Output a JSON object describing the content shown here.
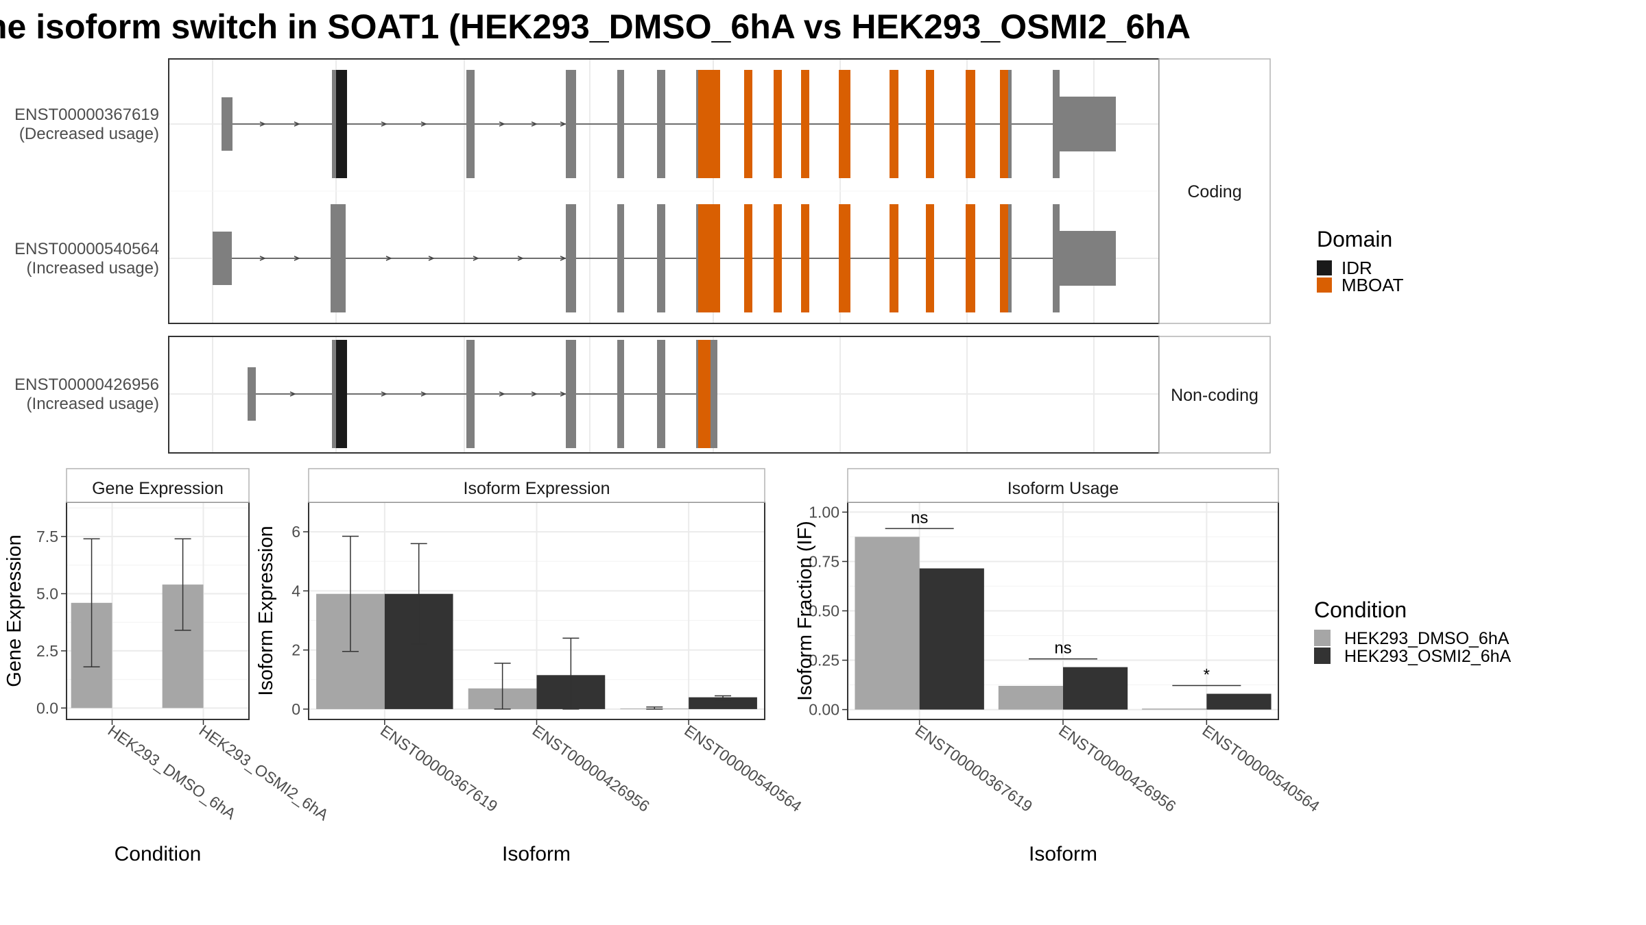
{
  "title": "he isoform switch in SOAT1 (HEK293_DMSO_6hA vs HEK293_OSMI2_6hA",
  "colors": {
    "exon": "#7f7f7f",
    "idr": "#1a1a1a",
    "mboat": "#d95f02",
    "cond1": "#a6a6a6",
    "cond2": "#333333",
    "grid": "#ebebeb",
    "strip": "#ffffff",
    "border": "#333333"
  },
  "structure": {
    "panels": [
      {
        "strip": "Coding",
        "transcripts": [
          {
            "id": "ENST00000367619",
            "usage": "(Decreased usage)"
          },
          {
            "id": "ENST00000540564",
            "usage": "(Increased usage)"
          }
        ]
      },
      {
        "strip": "Non-coding",
        "transcripts": [
          {
            "id": "ENST00000426956",
            "usage": "(Increased usage)"
          }
        ]
      }
    ],
    "legend": {
      "title": "Domain",
      "items": [
        {
          "label": "IDR",
          "color": "#1a1a1a"
        },
        {
          "label": "MBOAT",
          "color": "#d95f02"
        }
      ]
    }
  },
  "chart_data": [
    {
      "type": "bar",
      "title": "Gene Expression",
      "xlabel": "Condition",
      "ylabel": "Gene Expression",
      "ylim": [
        -0.5,
        9.0
      ],
      "yticks": [
        "0.0",
        "2.5",
        "5.0",
        "7.5"
      ],
      "categories": [
        "HEK293_DMSO_6hA",
        "HEK293_OSMI2_6hA"
      ],
      "series": [
        {
          "values": [
            4.6,
            5.4
          ],
          "lower": [
            1.8,
            3.4
          ],
          "upper": [
            7.4,
            7.4
          ]
        }
      ]
    },
    {
      "type": "bar",
      "title": "Isoform Expression",
      "xlabel": "Isoform",
      "ylabel": "Isoform Expression",
      "ylim": [
        -0.35,
        7.0
      ],
      "yticks": [
        "0",
        "2",
        "4",
        "6"
      ],
      "categories": [
        "ENST00000367619",
        "ENST00000426956",
        "ENST00000540564"
      ],
      "series": [
        {
          "name": "HEK293_DMSO_6hA",
          "values": [
            3.9,
            0.7,
            0.02
          ],
          "lower": [
            1.95,
            0.0,
            0.0
          ],
          "upper": [
            5.85,
            1.55,
            0.07
          ]
        },
        {
          "name": "HEK293_OSMI2_6hA",
          "values": [
            3.9,
            1.15,
            0.4
          ],
          "lower": [
            2.2,
            0.0,
            0.3
          ],
          "upper": [
            5.6,
            2.4,
            0.45
          ]
        }
      ]
    },
    {
      "type": "bar",
      "title": "Isoform Usage",
      "xlabel": "Isoform",
      "ylabel": "Isoform Fraction (IF)",
      "ylim": [
        -0.05,
        1.05
      ],
      "yticks": [
        "0.00",
        "0.25",
        "0.50",
        "0.75",
        "1.00"
      ],
      "categories": [
        "ENST00000367619",
        "ENST00000426956",
        "ENST00000540564"
      ],
      "series": [
        {
          "name": "HEK293_DMSO_6hA",
          "values": [
            0.875,
            0.12,
            0.005
          ]
        },
        {
          "name": "HEK293_OSMI2_6hA",
          "values": [
            0.715,
            0.215,
            0.08
          ]
        }
      ],
      "significance": [
        "ns",
        "ns",
        "*"
      ]
    }
  ],
  "condition_legend": {
    "title": "Condition",
    "items": [
      {
        "label": "HEK293_DMSO_6hA",
        "color": "#a6a6a6"
      },
      {
        "label": "HEK293_OSMI2_6hA",
        "color": "#333333"
      }
    ]
  }
}
